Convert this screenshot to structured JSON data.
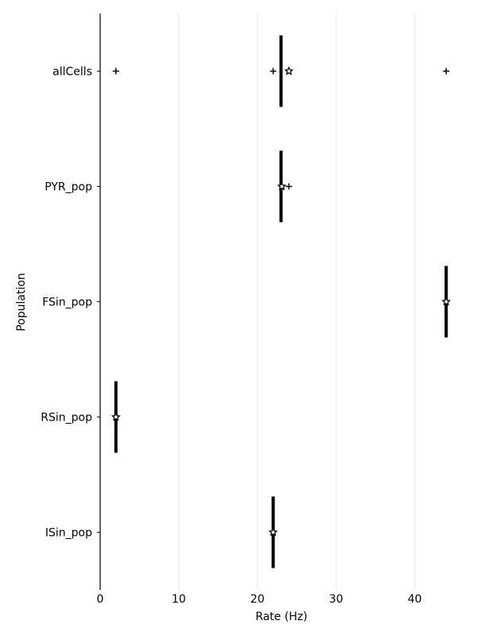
{
  "chart_data": {
    "type": "scatter",
    "xlabel": "Rate (Hz)",
    "ylabel": "Population",
    "xlim": [
      0,
      46
    ],
    "xticks": [
      0,
      10,
      20,
      30,
      40
    ],
    "grid": "vertical",
    "categories": [
      "allCells",
      "PYR_pop",
      "FSin_pop",
      "RSin_pop",
      "ISin_pop"
    ],
    "median": [
      23,
      23,
      44,
      2,
      22
    ],
    "mean": [
      24,
      23.1,
      44,
      2,
      22
    ],
    "outliers": [
      [
        2,
        22,
        44
      ],
      [
        24
      ],
      [],
      [],
      []
    ],
    "colors": {
      "marker": "#000000",
      "grid": "#e6e6e6"
    }
  }
}
